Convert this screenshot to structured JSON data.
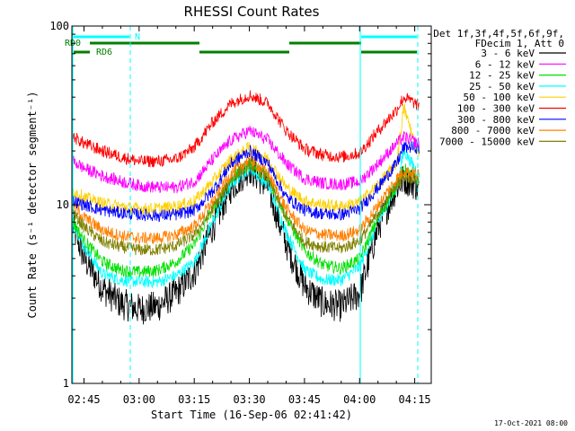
{
  "title": "RHESSI Count Rates",
  "xlabel": "Start Time (16-Sep-06 02:41:42)",
  "ylabel": "Count Rate (s⁻¹ detector segment⁻¹)",
  "footer": "17-Oct-2021 08:00",
  "legend": {
    "header1": "Det 1f,3f,4f,5f,6f,9f,",
    "header2": "FDecim 1, Att 0",
    "entries": [
      {
        "label": "3 - 6 keV",
        "color": "#000000"
      },
      {
        "label": "6 - 12 keV",
        "color": "#ff00ff"
      },
      {
        "label": "12 - 25 keV",
        "color": "#00e000"
      },
      {
        "label": "25 - 50 keV",
        "color": "#00ffff"
      },
      {
        "label": "50 - 100 keV",
        "color": "#ffd000"
      },
      {
        "label": "100 - 300 keV",
        "color": "#ff0000"
      },
      {
        "label": "300 - 800 keV",
        "color": "#0000ff"
      },
      {
        "label": "800 - 7000 keV",
        "color": "#ff8000"
      },
      {
        "label": "7000 - 15000 keV",
        "color": "#808000"
      }
    ]
  },
  "flags": {
    "N": {
      "label": "N",
      "color": "#00ffff"
    },
    "RD0": {
      "label": "RD0",
      "color": "#008000"
    },
    "RD6": {
      "label": "RD6",
      "color": "#008000"
    }
  },
  "chart_data": {
    "type": "line",
    "title": "RHESSI Count Rates",
    "xlabel": "Start Time (16-Sep-06 02:41:42)",
    "ylabel": "Count Rate (s⁻¹ detector segment⁻¹)",
    "x_unit": "minutes (UT clock time)",
    "xlim": [
      "02:41:42",
      "04:19:30"
    ],
    "ylim": [
      1,
      100
    ],
    "yscale": "log",
    "x_ticks": [
      "02:45",
      "03:00",
      "03:15",
      "03:30",
      "03:45",
      "04:00",
      "04:15"
    ],
    "y_ticks": [
      "1",
      "10",
      "100"
    ],
    "x": [
      "02:42",
      "02:45",
      "02:50",
      "02:55",
      "03:00",
      "03:05",
      "03:10",
      "03:15",
      "03:20",
      "03:25",
      "03:30",
      "03:35",
      "03:40",
      "03:45",
      "03:50",
      "03:55",
      "04:00",
      "04:05",
      "04:10",
      "04:12",
      "04:15",
      "04:18"
    ],
    "series": [
      {
        "name": "3 - 6 keV",
        "color": "#000000",
        "values": [
          7.5,
          5.0,
          3.4,
          2.8,
          2.6,
          2.7,
          3.2,
          4.2,
          7.5,
          12.5,
          16.0,
          12.5,
          6.0,
          3.5,
          2.8,
          2.7,
          3.2,
          7.5,
          12.5,
          14.0,
          13.0,
          11.5
        ]
      },
      {
        "name": "6 - 12 keV",
        "color": "#ff00ff",
        "values": [
          17.5,
          16.0,
          14.5,
          13.5,
          12.8,
          12.5,
          12.5,
          13.5,
          18.0,
          23.0,
          26.0,
          23.0,
          17.0,
          14.0,
          13.2,
          13.0,
          13.5,
          17.0,
          22.0,
          24.0,
          22.5,
          21.0
        ]
      },
      {
        "name": "12 - 25 keV",
        "color": "#00e000",
        "values": [
          8.0,
          6.3,
          4.8,
          4.3,
          4.2,
          4.3,
          4.8,
          6.0,
          9.5,
          14.0,
          17.0,
          14.5,
          8.5,
          5.5,
          4.6,
          4.4,
          5.0,
          8.5,
          13.0,
          16.0,
          14.0,
          13.0
        ]
      },
      {
        "name": "25 - 50 keV",
        "color": "#00ffff",
        "values": [
          8.0,
          5.8,
          4.1,
          3.8,
          3.7,
          3.7,
          4.0,
          4.8,
          8.0,
          13.0,
          16.0,
          13.0,
          7.0,
          4.3,
          3.8,
          3.8,
          4.5,
          8.0,
          12.5,
          20.0,
          16.0,
          12.0
        ]
      },
      {
        "name": "50 - 100 keV",
        "color": "#ffd000",
        "values": [
          12.0,
          11.0,
          10.2,
          9.8,
          9.5,
          9.5,
          9.8,
          10.5,
          13.5,
          18.0,
          21.0,
          18.0,
          12.5,
          10.5,
          10.0,
          9.8,
          10.3,
          13.0,
          17.0,
          35.0,
          22.0,
          17.0
        ]
      },
      {
        "name": "100 - 300 keV",
        "color": "#ff0000",
        "values": [
          24.0,
          22.0,
          20.0,
          18.5,
          17.5,
          17.5,
          18.0,
          21.0,
          29.0,
          37.0,
          41.0,
          37.0,
          26.0,
          20.5,
          19.0,
          18.5,
          19.5,
          26.0,
          34.0,
          40.0,
          37.0,
          33.0
        ]
      },
      {
        "name": "300 - 800 keV",
        "color": "#0000ff",
        "values": [
          10.5,
          10.0,
          9.3,
          9.0,
          8.8,
          8.7,
          8.8,
          9.3,
          12.0,
          17.0,
          20.0,
          17.0,
          11.0,
          9.3,
          8.9,
          8.8,
          9.5,
          12.5,
          17.0,
          21.0,
          21.0,
          20.0
        ]
      },
      {
        "name": "800 - 7000 keV",
        "color": "#ff8000",
        "values": [
          10.0,
          8.5,
          7.2,
          6.7,
          6.5,
          6.5,
          6.8,
          7.6,
          10.5,
          15.0,
          18.0,
          15.0,
          9.5,
          7.2,
          6.8,
          6.7,
          7.2,
          10.0,
          14.0,
          15.5,
          15.0,
          14.0
        ]
      },
      {
        "name": "7000 - 15000 keV",
        "color": "#808000",
        "values": [
          9.0,
          7.5,
          6.2,
          5.8,
          5.6,
          5.6,
          5.9,
          6.8,
          9.5,
          14.0,
          17.0,
          14.0,
          8.5,
          6.2,
          5.8,
          5.7,
          6.3,
          9.0,
          13.0,
          14.5,
          14.0,
          13.0
        ]
      }
    ]
  }
}
